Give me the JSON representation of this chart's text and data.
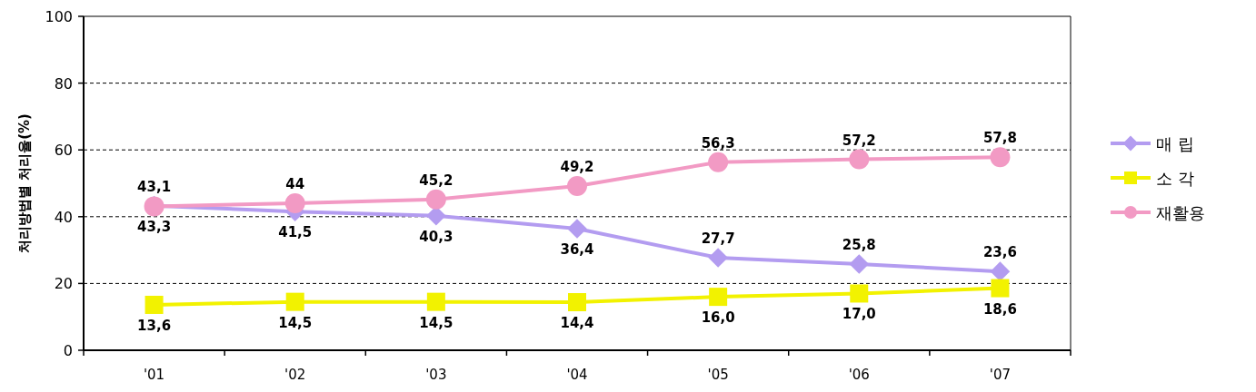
{
  "chart_data": {
    "type": "line",
    "ylabel": "처리방법별 처리율(%)",
    "categories": [
      "'01",
      "'02",
      "'03",
      "'04",
      "'05",
      "'06",
      "'07"
    ],
    "ylim": [
      0,
      100
    ],
    "yticks": [
      0,
      20,
      40,
      60,
      80,
      100
    ],
    "grid": "y",
    "legend": "right",
    "line_style": "solid",
    "series": [
      {
        "name": "매 립",
        "color": "#b39cf0",
        "marker": "diamond",
        "values": [
          43.3,
          41.5,
          40.3,
          36.4,
          27.7,
          25.8,
          23.6
        ],
        "value_labels": [
          "43,3",
          "41,5",
          "40,3",
          "36,4",
          "27,7",
          "25,8",
          "23,6"
        ]
      },
      {
        "name": "소 각",
        "color": "#f2f200",
        "marker": "square",
        "values": [
          13.6,
          14.5,
          14.5,
          14.4,
          16.0,
          17.0,
          18.6
        ],
        "value_labels": [
          "13,6",
          "14,5",
          "14,5",
          "14,4",
          "16,0",
          "17,0",
          "18,6"
        ]
      },
      {
        "name": "재활용",
        "color": "#f29ac4",
        "marker": "circle",
        "values": [
          43.1,
          44,
          45.2,
          49.2,
          56.3,
          57.2,
          57.8
        ],
        "value_labels": [
          "43,1",
          "44",
          "45,2",
          "49,2",
          "56,3",
          "57,2",
          "57,8"
        ]
      }
    ]
  }
}
